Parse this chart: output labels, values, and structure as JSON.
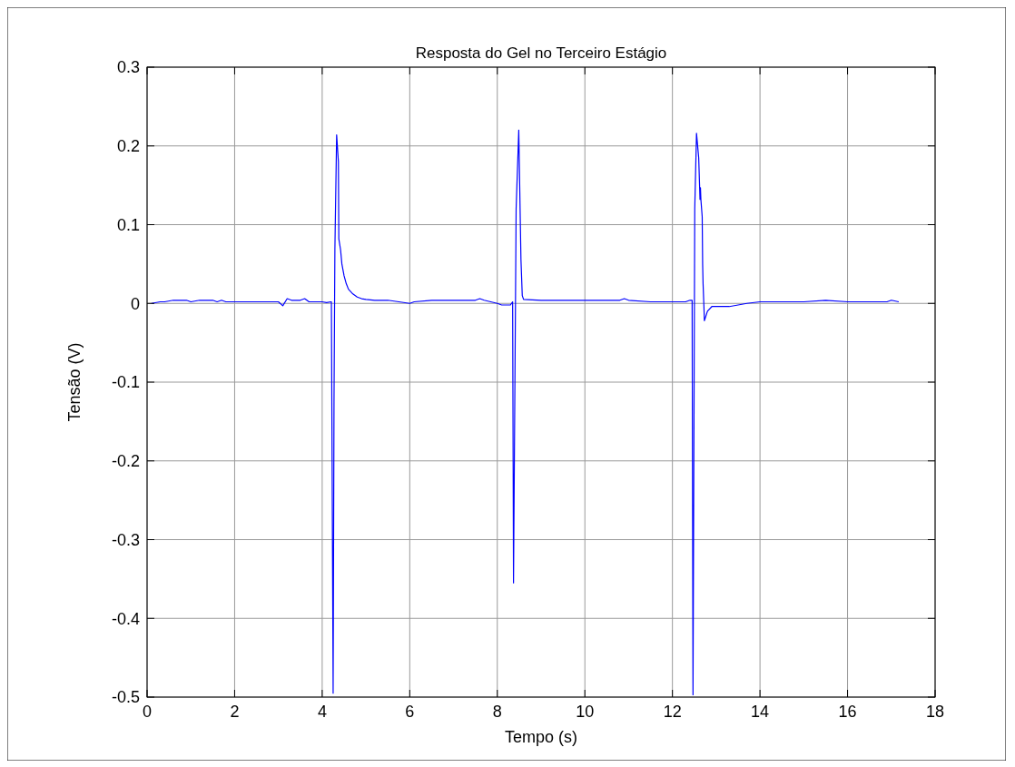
{
  "chart_data": {
    "type": "line",
    "title": "Resposta do Gel no Terceiro Estágio",
    "xlabel": "Tempo (s)",
    "ylabel": "Tensão (V)",
    "xlim": [
      0,
      18
    ],
    "xticks": [
      0,
      2,
      4,
      6,
      8,
      10,
      12,
      14,
      16,
      18
    ],
    "ylim": [
      -0.5,
      0.3
    ],
    "yticks": [
      -0.5,
      -0.4,
      -0.3,
      -0.2,
      -0.1,
      0,
      0.1,
      0.2,
      0.3
    ],
    "grid": true,
    "line_style": "solid",
    "marker": "none",
    "series": [
      {
        "color": "#0000ff",
        "x": [
          0.1,
          0.3,
          0.4,
          0.6,
          0.9,
          1.0,
          1.2,
          1.5,
          1.6,
          1.7,
          1.8,
          3.0,
          3.1,
          3.2,
          3.3,
          3.5,
          3.6,
          3.7,
          4.0,
          4.1,
          4.2,
          4.21,
          4.25,
          4.27,
          4.29,
          4.33,
          4.37,
          4.38,
          4.42,
          4.45,
          4.5,
          4.55,
          4.6,
          4.7,
          4.8,
          4.9,
          5.0,
          5.2,
          5.5,
          6.0,
          6.1,
          6.5,
          7.0,
          7.5,
          7.6,
          7.7,
          8.0,
          8.1,
          8.3,
          8.35,
          8.37,
          8.43,
          8.49,
          8.54,
          8.57,
          8.6,
          9.0,
          9.5,
          10.0,
          10.8,
          10.9,
          11.0,
          11.5,
          12.0,
          12.3,
          12.4,
          12.45,
          12.47,
          12.51,
          12.55,
          12.6,
          12.63,
          12.64,
          12.65,
          12.68,
          12.69,
          12.7,
          12.72,
          12.73,
          12.8,
          12.9,
          13.3,
          13.7,
          14.0,
          15.0,
          15.5,
          16.0,
          16.9,
          17.0,
          17.17
        ],
        "values": [
          0,
          0.002,
          0.002,
          0.004,
          0.004,
          0.002,
          0.004,
          0.004,
          0.002,
          0.004,
          0.002,
          0.002,
          -0.003,
          0.006,
          0.004,
          0.004,
          0.006,
          0.002,
          0.002,
          0.001,
          0.002,
          0.002,
          -0.495,
          -0.125,
          0.068,
          0.214,
          0.18,
          0.082,
          0.068,
          0.05,
          0.035,
          0.025,
          0.018,
          0.012,
          0.008,
          0.006,
          0.005,
          0.004,
          0.004,
          0,
          0.002,
          0.004,
          0.004,
          0.004,
          0.006,
          0.004,
          0,
          -0.002,
          -0.002,
          0.002,
          -0.355,
          0.12,
          0.22,
          0.056,
          0.01,
          0.005,
          0.004,
          0.004,
          0.004,
          0.004,
          0.006,
          0.004,
          0.002,
          0.002,
          0.002,
          0.004,
          0.004,
          -0.497,
          0.12,
          0.216,
          0.185,
          0.132,
          0.147,
          0.132,
          0.11,
          0.05,
          0.025,
          -0.005,
          -0.022,
          -0.01,
          -0.004,
          -0.004,
          0,
          0.002,
          0.002,
          0.004,
          0.002,
          0.002,
          0.004,
          0.002
        ]
      }
    ]
  }
}
